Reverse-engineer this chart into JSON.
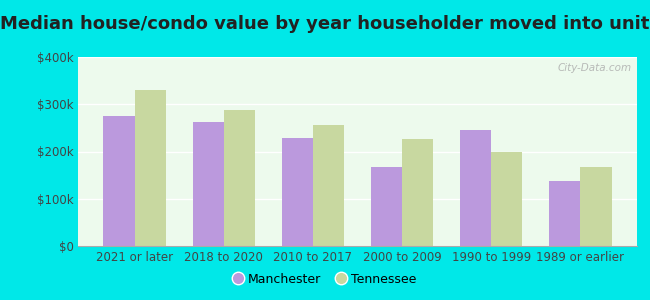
{
  "title": "Median house/condo value by year householder moved into unit",
  "categories": [
    "2021 or later",
    "2018 to 2020",
    "2010 to 2017",
    "2000 to 2009",
    "1990 to 1999",
    "1989 or earlier"
  ],
  "manchester_values": [
    275000,
    263000,
    228000,
    168000,
    245000,
    138000
  ],
  "tennessee_values": [
    330000,
    288000,
    257000,
    227000,
    200000,
    168000
  ],
  "manchester_color": "#bb99dd",
  "tennessee_color": "#c8d8a0",
  "figure_bg_color": "#00e8e8",
  "plot_bg_color": "#edfaed",
  "ylim": [
    0,
    400000
  ],
  "yticks": [
    0,
    100000,
    200000,
    300000,
    400000
  ],
  "bar_width": 0.35,
  "watermark": "City-Data.com",
  "legend_labels": [
    "Manchester",
    "Tennessee"
  ],
  "title_fontsize": 13,
  "tick_fontsize": 8.5
}
